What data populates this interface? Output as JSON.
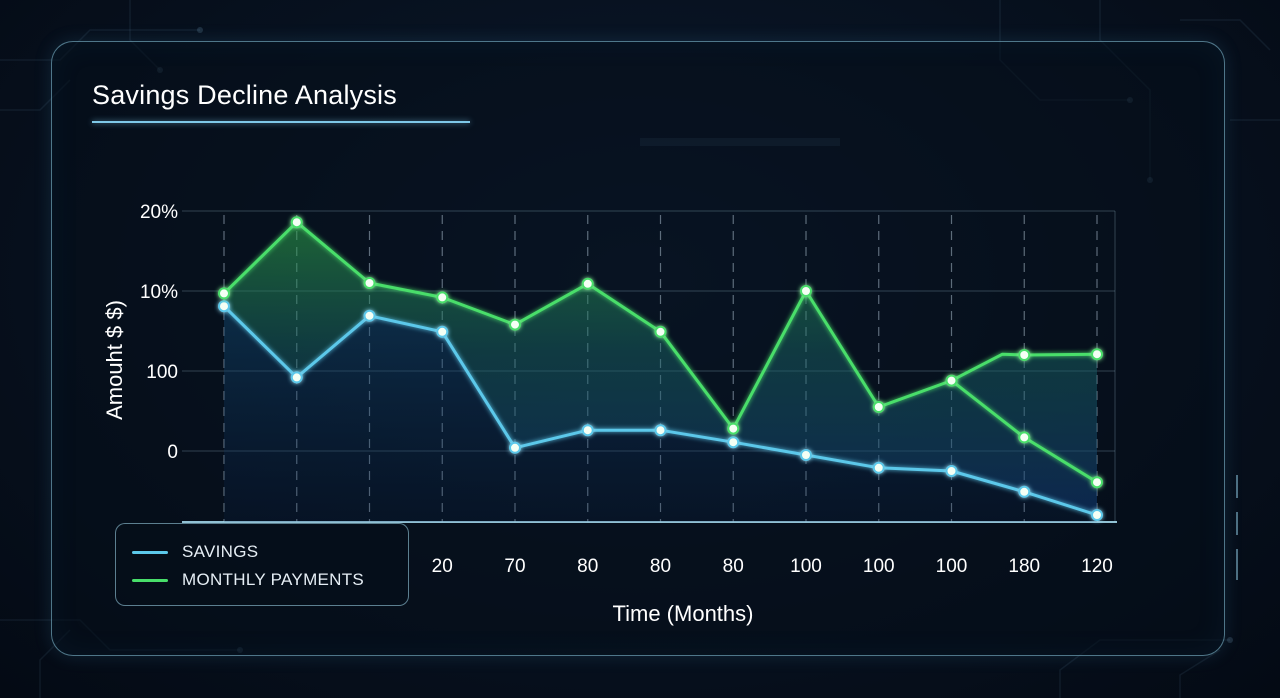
{
  "colors": {
    "savings": "#5cc8ea",
    "monthly_payments": "#48de6a"
  },
  "chart_data": {
    "type": "line",
    "title": "Savings Decline Analysis",
    "xlabel": "Time (Months)",
    "ylabel": "Amouht $ $)",
    "y_tick_labels": [
      "20%",
      "10%",
      "100",
      "0"
    ],
    "x_tick_labels": [
      "20",
      "70",
      "80",
      "80",
      "80",
      "100",
      "100",
      "100",
      "180",
      "120"
    ],
    "y_scale_note": "tick labels are inconsistent; values below are in the chart's visual scale where 0 = '0' line, 1 = '100' line, 2 = '10%' line, 3 = '20%' line",
    "grid": true,
    "legend_position": "bottom-left",
    "series": [
      {
        "name": "SAVINGS",
        "x_index": [
          0,
          1,
          2,
          3,
          4,
          5,
          6,
          7,
          8,
          9,
          10,
          11,
          12
        ],
        "values": [
          1.81,
          0.92,
          1.69,
          1.49,
          0.04,
          0.26,
          0.26,
          0.11,
          -0.05,
          -0.21,
          -0.25,
          -0.51,
          -0.8
        ]
      },
      {
        "name": "MONTHLY PAYMENTS",
        "x_index": [
          0,
          1,
          2,
          3,
          4,
          5,
          6,
          7,
          8,
          9,
          10,
          10.7,
          11,
          12
        ],
        "values": [
          1.97,
          2.86,
          2.1,
          1.92,
          1.58,
          2.09,
          1.49,
          0.28,
          2.0,
          0.55,
          0.88,
          1.21,
          1.2,
          1.21
        ]
      },
      {
        "name": "",
        "x_index": [
          10,
          11,
          12
        ],
        "values": [
          0.88,
          0.17,
          -0.39
        ]
      }
    ]
  }
}
